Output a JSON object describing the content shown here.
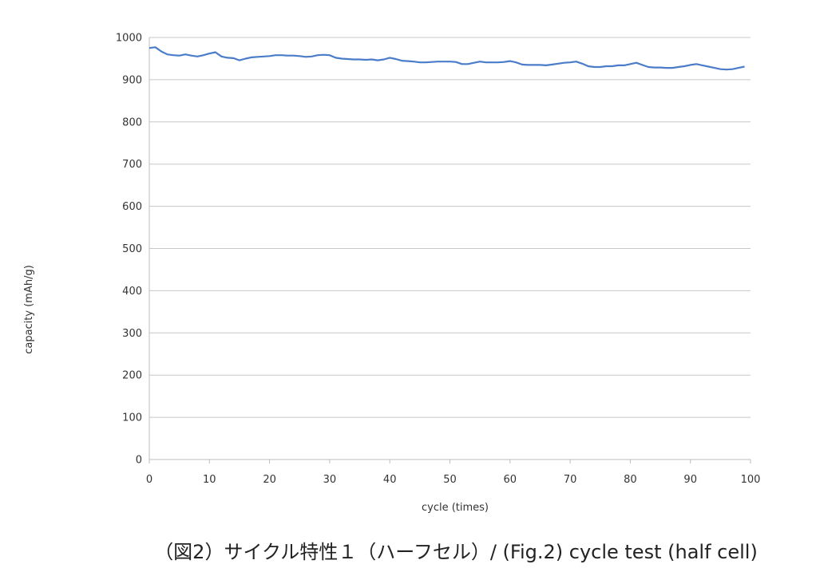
{
  "chart_data": {
    "type": "line",
    "xlabel": "cycle (times)",
    "ylabel": "capacity (mAh/g)",
    "xlim": [
      0,
      100
    ],
    "ylim": [
      0,
      1000
    ],
    "xticks": [
      0,
      10,
      20,
      30,
      40,
      50,
      60,
      70,
      80,
      90,
      100
    ],
    "yticks": [
      0,
      100,
      200,
      300,
      400,
      500,
      600,
      700,
      800,
      900,
      1000
    ],
    "grid": "horizontal",
    "legend": "none",
    "series": [
      {
        "color": "#4a7cc9",
        "x": [
          0,
          1,
          2,
          3,
          4,
          5,
          6,
          7,
          8,
          9,
          10,
          11,
          12,
          13,
          14,
          15,
          16,
          17,
          18,
          19,
          20,
          21,
          22,
          23,
          24,
          25,
          26,
          27,
          28,
          29,
          30,
          31,
          32,
          33,
          34,
          35,
          36,
          37,
          38,
          39,
          40,
          41,
          42,
          43,
          44,
          45,
          46,
          47,
          48,
          49,
          50,
          51,
          52,
          53,
          54,
          55,
          56,
          57,
          58,
          59,
          60,
          61,
          62,
          63,
          64,
          65,
          66,
          67,
          68,
          69,
          70,
          71,
          72,
          73,
          74,
          75,
          76,
          77,
          78,
          79,
          80,
          81,
          82,
          83,
          84,
          85,
          86,
          87,
          88,
          89,
          90,
          91,
          92,
          93,
          94,
          95,
          96,
          97,
          98,
          99
        ],
        "values": [
          975,
          977,
          967,
          960,
          958,
          957,
          960,
          957,
          955,
          958,
          962,
          965,
          955,
          952,
          951,
          946,
          950,
          953,
          954,
          955,
          956,
          958,
          958,
          957,
          957,
          956,
          954,
          955,
          958,
          959,
          958,
          952,
          950,
          949,
          948,
          948,
          947,
          948,
          946,
          948,
          952,
          949,
          945,
          944,
          943,
          941,
          941,
          942,
          943,
          943,
          943,
          942,
          937,
          937,
          940,
          943,
          941,
          941,
          941,
          942,
          944,
          941,
          936,
          935,
          935,
          935,
          934,
          936,
          938,
          940,
          941,
          943,
          938,
          932,
          930,
          930,
          932,
          932,
          934,
          934,
          937,
          940,
          935,
          930,
          929,
          929,
          928,
          928,
          930,
          932,
          935,
          937,
          934,
          931,
          928,
          925,
          924,
          925,
          928,
          931
        ]
      }
    ]
  },
  "caption": "（図2）サイクル特性１（ハーフセル）/ (Fig.2) cycle test (half cell)"
}
